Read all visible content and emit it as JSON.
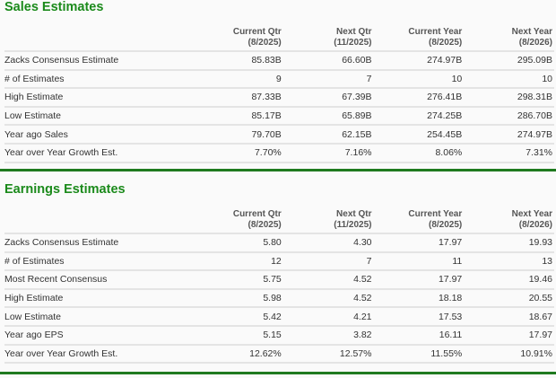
{
  "sales": {
    "title": "Sales Estimates",
    "columns": [
      {
        "name": "Current Qtr",
        "period": "(8/2025)"
      },
      {
        "name": "Next Qtr",
        "period": "(11/2025)"
      },
      {
        "name": "Current Year",
        "period": "(8/2025)"
      },
      {
        "name": "Next Year",
        "period": "(8/2026)"
      }
    ],
    "rows": [
      {
        "label": "Zacks Consensus Estimate",
        "values": [
          "85.83B",
          "66.60B",
          "274.97B",
          "295.09B"
        ]
      },
      {
        "label": "# of Estimates",
        "values": [
          "9",
          "7",
          "10",
          "10"
        ]
      },
      {
        "label": "High Estimate",
        "values": [
          "87.33B",
          "67.39B",
          "276.41B",
          "298.31B"
        ]
      },
      {
        "label": "Low Estimate",
        "values": [
          "85.17B",
          "65.89B",
          "274.25B",
          "286.70B"
        ]
      },
      {
        "label": "Year ago Sales",
        "values": [
          "79.70B",
          "62.15B",
          "254.45B",
          "274.97B"
        ]
      },
      {
        "label": "Year over Year Growth Est.",
        "values": [
          "7.70%",
          "7.16%",
          "8.06%",
          "7.31%"
        ]
      }
    ]
  },
  "earnings": {
    "title": "Earnings Estimates",
    "columns": [
      {
        "name": "Current Qtr",
        "period": "(8/2025)"
      },
      {
        "name": "Next Qtr",
        "period": "(11/2025)"
      },
      {
        "name": "Current Year",
        "period": "(8/2025)"
      },
      {
        "name": "Next Year",
        "period": "(8/2026)"
      }
    ],
    "rows": [
      {
        "label": "Zacks Consensus Estimate",
        "values": [
          "5.80",
          "4.30",
          "17.97",
          "19.93"
        ]
      },
      {
        "label": "# of Estimates",
        "values": [
          "12",
          "7",
          "11",
          "13"
        ]
      },
      {
        "label": "Most Recent Consensus",
        "values": [
          "5.75",
          "4.52",
          "17.97",
          "19.46"
        ]
      },
      {
        "label": "High Estimate",
        "values": [
          "5.98",
          "4.52",
          "18.18",
          "20.55"
        ]
      },
      {
        "label": "Low Estimate",
        "values": [
          "5.42",
          "4.21",
          "17.53",
          "18.67"
        ]
      },
      {
        "label": "Year ago EPS",
        "values": [
          "5.15",
          "3.82",
          "16.11",
          "17.97"
        ]
      },
      {
        "label": "Year over Year Growth Est.",
        "values": [
          "12.62%",
          "12.57%",
          "11.55%",
          "10.91%"
        ]
      }
    ]
  },
  "colors": {
    "title": "#1b8a1b",
    "rule": "#1f7a1f",
    "row_border": "#e4e4e4"
  }
}
